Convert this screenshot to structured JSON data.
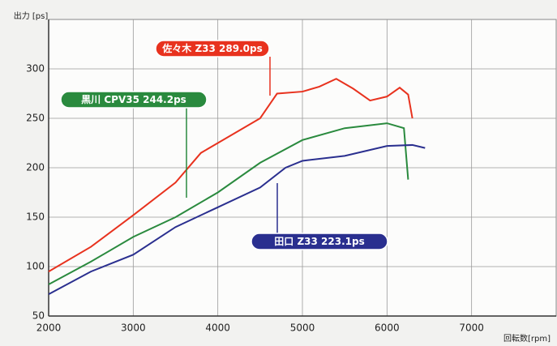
{
  "chart_data": {
    "type": "line",
    "x_label": "回転数[rpm]",
    "y_label": "出力 [ps]",
    "xlim": [
      2000,
      8000
    ],
    "xticks": [
      2000,
      3000,
      4000,
      5000,
      6000,
      7000
    ],
    "ylim": [
      50,
      350
    ],
    "yticks": [
      50,
      100,
      150,
      200,
      250,
      300
    ],
    "grid": true,
    "series": [
      {
        "name": "佐々木 Z33 289.0ps",
        "color": "#e8321e",
        "x": [
          2000,
          2500,
          3000,
          3500,
          3800,
          4000,
          4500,
          4700,
          5000,
          5200,
          5400,
          5600,
          5800,
          6000,
          6150,
          6250,
          6300
        ],
        "values": [
          95,
          120,
          152,
          185,
          215,
          225,
          250,
          275,
          277,
          282,
          290,
          280,
          268,
          272,
          281,
          274,
          250
        ]
      },
      {
        "name": "黒川 CPV35 244.2ps",
        "color": "#2a8a3e",
        "x": [
          2000,
          2500,
          3000,
          3500,
          4000,
          4500,
          5000,
          5500,
          6000,
          6200,
          6250
        ],
        "values": [
          82,
          105,
          130,
          150,
          175,
          205,
          228,
          240,
          245,
          240,
          188
        ]
      },
      {
        "name": "田口 Z33 223.1ps",
        "color": "#2a2f8f",
        "x": [
          2000,
          2500,
          3000,
          3500,
          4000,
          4500,
          4800,
          5000,
          5500,
          6000,
          6300,
          6450
        ],
        "values": [
          72,
          95,
          112,
          140,
          160,
          180,
          200,
          207,
          212,
          222,
          223,
          220
        ]
      }
    ]
  }
}
